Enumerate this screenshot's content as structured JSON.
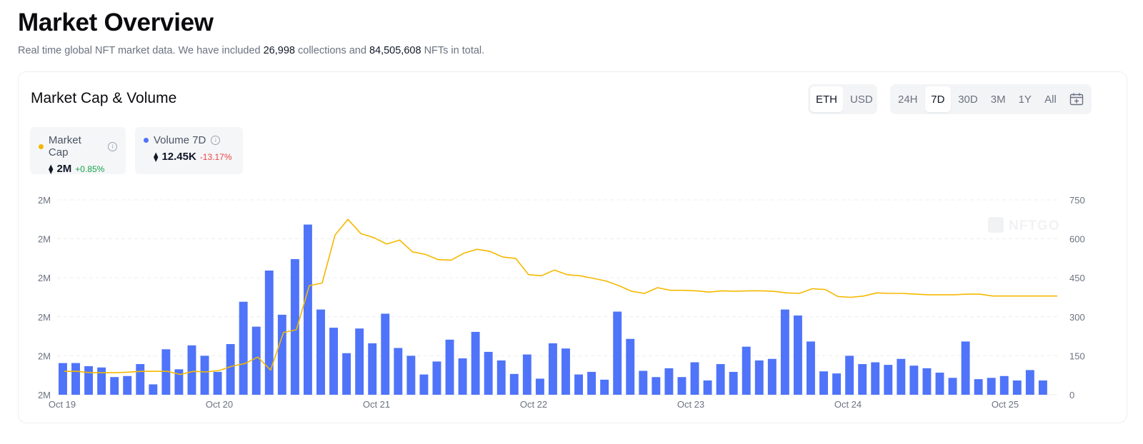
{
  "header": {
    "title": "Market Overview",
    "subtitle_pre": "Real time global NFT market data. We have included",
    "collections": "26,998",
    "subtitle_mid": "collections and",
    "nfts": "84,505,608",
    "subtitle_post": "NFTs in total."
  },
  "card": {
    "title": "Market Cap & Volume",
    "currency_toggle": [
      "ETH",
      "USD"
    ],
    "currency_selected": "ETH",
    "range_toggle": [
      "24H",
      "7D",
      "30D",
      "3M",
      "1Y",
      "All"
    ],
    "range_selected": "7D",
    "calendar_icon": "calendar-icon"
  },
  "legend": {
    "market_cap": {
      "name": "Market Cap",
      "value": "2M",
      "change": "+0.85%",
      "color": "#f5b800",
      "change_color": "#16a34a"
    },
    "volume": {
      "name": "Volume 7D",
      "value": "12.45K",
      "change": "-13.17%",
      "color": "#4f74f9",
      "change_color": "#ef4444"
    }
  },
  "watermark": "NFTGO",
  "chart_data": {
    "type": "bar+line",
    "x_tick_labels": [
      "Oct 19",
      "Oct 20",
      "Oct 21",
      "Oct 22",
      "Oct 23",
      "Oct 24",
      "Oct 25"
    ],
    "left_axis_labels": [
      "2M",
      "2M",
      "2M",
      "2M",
      "2M",
      "2M"
    ],
    "right_axis_labels": [
      "0",
      "150",
      "300",
      "450",
      "600",
      "750"
    ],
    "right_ylim": [
      0,
      750
    ],
    "grid": "horizontal dashed",
    "series": [
      {
        "name": "Volume 7D",
        "type": "bar",
        "axis": "right",
        "color": "#4f74f9",
        "values": [
          122,
          122,
          110,
          105,
          68,
          72,
          118,
          40,
          175,
          98,
          190,
          150,
          88,
          195,
          358,
          262,
          478,
          308,
          522,
          655,
          328,
          258,
          160,
          255,
          198,
          312,
          180,
          150,
          78,
          128,
          212,
          140,
          242,
          165,
          132,
          80,
          155,
          62,
          198,
          178,
          78,
          88,
          58,
          320,
          215,
          92,
          68,
          102,
          68,
          125,
          55,
          118,
          88,
          185,
          132,
          138,
          328,
          305,
          205,
          90,
          82,
          150,
          118,
          125,
          115,
          138,
          112,
          102,
          85,
          65,
          205,
          60,
          65,
          72,
          55,
          95,
          55
        ]
      },
      {
        "name": "Market Cap",
        "type": "line",
        "axis": "right",
        "color": "#f5b800",
        "values": [
          90,
          90,
          85,
          85,
          85,
          87,
          90,
          90,
          90,
          78,
          90,
          88,
          93,
          110,
          120,
          145,
          95,
          240,
          250,
          420,
          430,
          615,
          675,
          620,
          605,
          580,
          595,
          550,
          540,
          520,
          518,
          545,
          560,
          552,
          530,
          525,
          462,
          458,
          480,
          462,
          458,
          448,
          438,
          420,
          398,
          390,
          412,
          402,
          402,
          400,
          395,
          400,
          398,
          400,
          400,
          398,
          392,
          390,
          408,
          405,
          378,
          375,
          380,
          392,
          390,
          390,
          387,
          385,
          385,
          385,
          387,
          387,
          380,
          380,
          380,
          380,
          380,
          380
        ]
      }
    ]
  }
}
